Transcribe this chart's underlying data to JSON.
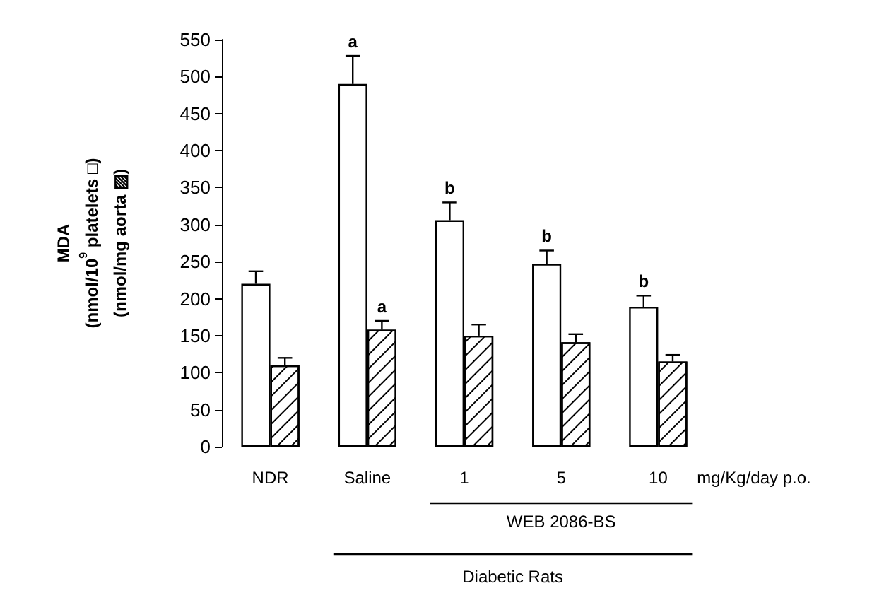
{
  "chart_data": {
    "type": "bar",
    "ylabel": "MDA\n(nmol/10$^{9}$ platelets □)\n(nmol/mg aorta ▨)",
    "categories": [
      "NDR",
      "Saline",
      "1",
      "5",
      "10"
    ],
    "series": [
      {
        "color": "#ffffff",
        "values": [
          220,
          490,
          306,
          247,
          189
        ],
        "errors": [
          17,
          38,
          24,
          18,
          15
        ]
      },
      {
        "color": "#000000",
        "values": [
          110,
          158,
          150,
          141,
          115
        ],
        "errors": [
          10,
          12,
          15,
          11,
          9
        ]
      }
    ],
    "ylim": [
      0,
      550
    ],
    "yticks": [
      0,
      50,
      100,
      150,
      200,
      250,
      300,
      350,
      400,
      450,
      500,
      550
    ],
    "grid": false,
    "annotations": [
      {
        "text": "a",
        "x": "Saline",
        "y": 490
      },
      {
        "text": "a",
        "x": "Saline",
        "y": 158
      },
      {
        "text": "b",
        "x": "1",
        "y": 306
      },
      {
        "text": "b",
        "x": "5",
        "y": 247
      },
      {
        "text": "b",
        "x": "10",
        "y": 189
      },
      "mg/Kg/day p.o.",
      "WEB 2086-BS",
      "Diabetic Rats"
    ]
  }
}
